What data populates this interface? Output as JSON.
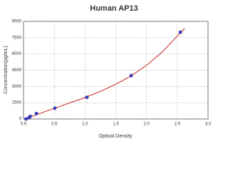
{
  "chart_data": {
    "type": "scatter",
    "title": "Human AP13",
    "x_label": "Optical Density",
    "y_label": "Concentration(pg/mL)",
    "x": [
      0.04,
      0.09,
      0.11,
      0.21,
      0.51,
      1.03,
      1.75,
      2.55
    ],
    "values": [
      0,
      125,
      250,
      500,
      1000,
      2000,
      4000,
      8000
    ],
    "color": "#3a3ad0",
    "fit": {
      "color": "#cc1f1f",
      "x": [
        0.03,
        0.25,
        0.5,
        0.75,
        1.0,
        1.25,
        1.5,
        1.75,
        2.0,
        2.25,
        2.5,
        2.62
      ],
      "values": [
        0,
        480,
        980,
        1480,
        1980,
        2550,
        3200,
        3980,
        4950,
        6150,
        7650,
        8350
      ]
    },
    "xlim": [
      0,
      3
    ],
    "xticks": [
      {
        "value": 0,
        "label": "0.0"
      },
      0.5,
      {
        "value": 1,
        "label": "1.0"
      },
      1.5,
      {
        "value": 2,
        "label": "2.0"
      },
      2.5,
      {
        "value": 3,
        "label": "3.0"
      }
    ],
    "ylim": [
      0,
      9000
    ],
    "yticks": [
      0,
      1500,
      3000,
      4500,
      6000,
      7500,
      9000
    ],
    "grid": true
  }
}
